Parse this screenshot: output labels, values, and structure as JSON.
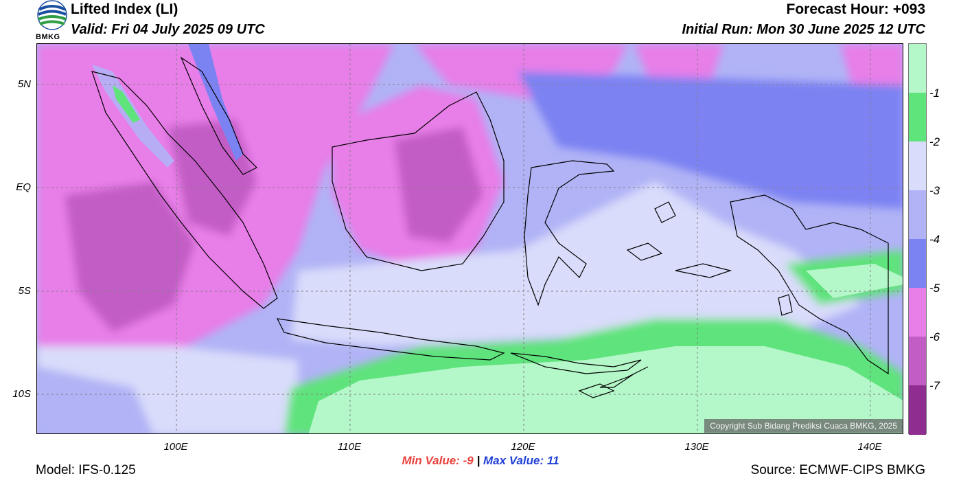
{
  "header": {
    "title": "Lifted Index (LI)",
    "valid": "Valid: Fri 04 July 2025 09 UTC",
    "forecast_hour": "Forecast Hour: +093",
    "initial_run": "Initial Run: Mon 30 June 2025 12 UTC",
    "logo_text": "BMKG"
  },
  "map": {
    "y_labels": [
      "5N",
      "EQ",
      "5S",
      "10S"
    ],
    "x_labels": [
      "100E",
      "110E",
      "120E",
      "130E",
      "140E"
    ],
    "copyright": "Copyright Sub Bidang Prediksi Cuaca BMKG, 2025"
  },
  "colorbar": {
    "labels": [
      "-1",
      "-2",
      "-3",
      "-4",
      "-5",
      "-6",
      "-7"
    ],
    "colors": [
      "#b4f7c8",
      "#5fe37b",
      "#d9dcfa",
      "#b1b3f6",
      "#7b82f2",
      "#e87ee8",
      "#c35dc6",
      "#8f2d90"
    ]
  },
  "footer": {
    "min_label": "Min Value:",
    "min_value": "-9",
    "separator": "|",
    "max_label": "Max Value:",
    "max_value": "11",
    "model": "Model: IFS-0.125",
    "source": "Source: ECMWF-CIPS BMKG"
  }
}
